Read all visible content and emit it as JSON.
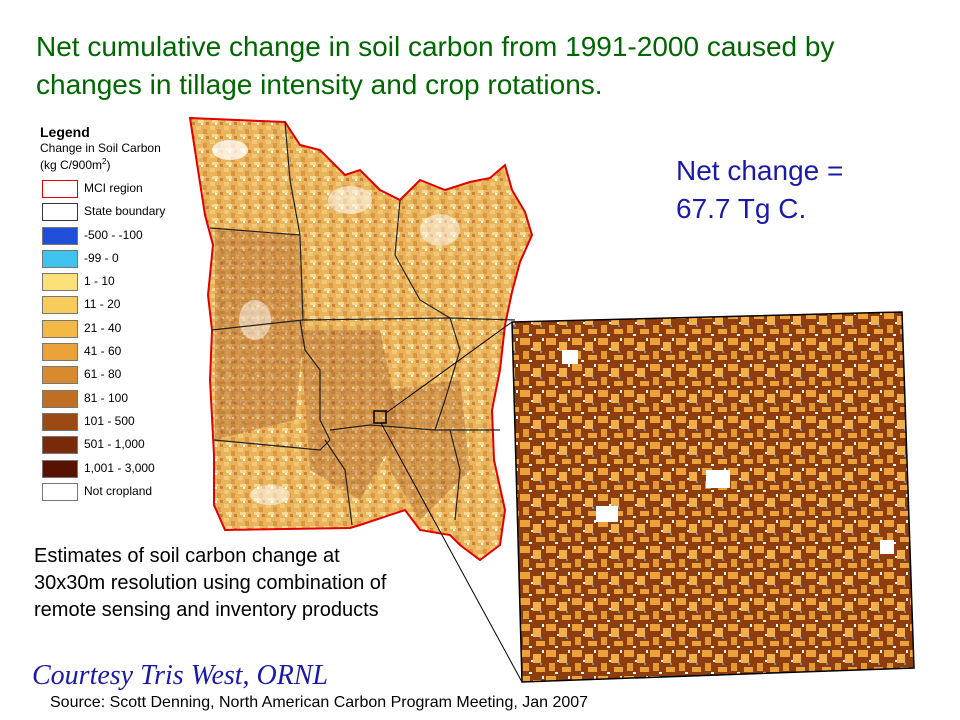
{
  "title": "Net cumulative change in soil carbon from 1991-2000 caused by changes in tillage intensity and crop rotations.",
  "net_change": {
    "line1": "Net change =",
    "line2": "67.7 Tg C."
  },
  "legend": {
    "title": "Legend",
    "subtitle_line1": "Change in Soil Carbon",
    "subtitle_line2_prefix": "(kg C/900m",
    "subtitle_line2_sup": "2",
    "subtitle_line2_suffix": ")",
    "items": [
      {
        "label": "MCI region",
        "color": "#ffffff",
        "border": "#e00000"
      },
      {
        "label": "State boundary",
        "color": "#ffffff",
        "border": "#333333"
      },
      {
        "label": "-500 - -100",
        "color": "#1f4fd8",
        "border": "#777777"
      },
      {
        "label": "-99 - 0",
        "color": "#3fc3ee",
        "border": "#777777"
      },
      {
        "label": "1 - 10",
        "color": "#fbe07a",
        "border": "#777777"
      },
      {
        "label": "11 - 20",
        "color": "#f8cc5c",
        "border": "#777777"
      },
      {
        "label": "21 - 40",
        "color": "#f3b845",
        "border": "#777777"
      },
      {
        "label": "41 - 60",
        "color": "#eca23a",
        "border": "#777777"
      },
      {
        "label": "61 - 80",
        "color": "#d98a30",
        "border": "#777777"
      },
      {
        "label": "81 - 100",
        "color": "#c06e24",
        "border": "#777777"
      },
      {
        "label": "101 - 500",
        "color": "#9c4a14",
        "border": "#777777"
      },
      {
        "label": "501 - 1,000",
        "color": "#7a2a08",
        "border": "#777777"
      },
      {
        "label": "1,001 - 3,000",
        "color": "#5a1200",
        "border": "#777777"
      },
      {
        "label": "Not cropland",
        "color": "#ffffff",
        "border": "#777777"
      }
    ]
  },
  "estimates": {
    "line1": "Estimates of soil carbon change at",
    "line2": "30x30m resolution using combination of",
    "line3": "remote sensing and inventory products"
  },
  "courtesy": "Courtesy Tris West, ORNL",
  "source": "Source:  Scott Denning, North American Carbon Program Meeting, Jan 2007",
  "colors": {
    "title": "#006600",
    "net_change": "#1a1aa8",
    "mci_border": "#e00000",
    "inset_base": "#8e3d0e",
    "inset_light": "#eca23a"
  }
}
